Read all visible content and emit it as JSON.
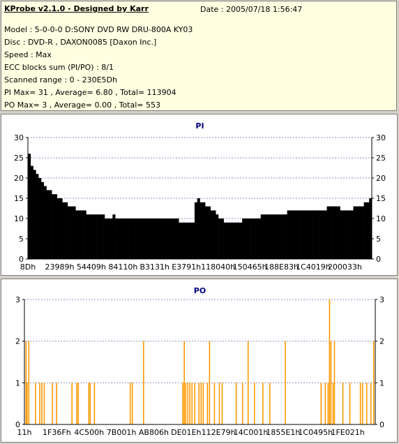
{
  "info": {
    "title": "KProbe v2.1.0 - Designed by Karr",
    "date": "Date : 2005/07/18 1:56:47",
    "lines": [
      "Model : 5-0-0-0 D:SONY    DVD RW DRU-800A  KY03",
      "Disc : DVD-R , DAXON0085 [Daxon Inc.]",
      "Speed : Max",
      "ECC blocks sum (PI/PO) : 8/1",
      "Scanned range : 0 - 230E5Dh",
      "PI Max= 31 , Average= 6.80 , Total= 113904",
      "PO Max= 3 , Average= 0.00 , Total= 553"
    ]
  },
  "chart_data": [
    {
      "type": "bar",
      "title": "PI",
      "color": "#000000",
      "ylim": [
        0,
        30
      ],
      "yticks": [
        0,
        5,
        10,
        15,
        20,
        25,
        30
      ],
      "xticks": [
        "8Dh",
        "23989h",
        "54409h",
        "84110h",
        "B3131h",
        "E3791h",
        "118040h",
        "150465h",
        "188E83h",
        "1C4019h",
        "200033h"
      ],
      "grid": true,
      "series": [
        {
          "values_sampled": [
            26,
            23,
            22,
            21,
            20,
            19,
            18,
            17,
            17,
            16,
            16,
            15,
            15,
            14,
            14,
            13,
            13,
            13,
            12,
            12,
            12,
            12,
            11,
            11,
            11,
            11,
            11,
            11,
            11,
            10,
            10,
            10,
            11,
            10,
            10,
            10,
            10,
            10,
            10,
            10,
            10,
            10,
            10,
            10,
            10,
            10,
            10,
            10,
            10,
            10,
            10,
            10,
            10,
            10,
            10,
            10,
            10,
            9,
            9,
            9,
            9,
            9,
            9,
            14,
            15,
            14,
            14,
            13,
            13,
            12,
            12,
            11,
            10,
            10,
            9,
            9,
            9,
            9,
            9,
            9,
            9,
            10,
            10,
            10,
            10,
            10,
            10,
            10,
            11,
            11,
            11,
            11,
            11,
            11,
            11,
            11,
            11,
            11,
            12,
            12,
            12,
            12,
            12,
            12,
            12,
            12,
            12,
            12,
            12,
            12,
            12,
            12,
            12,
            13,
            13,
            13,
            13,
            13,
            12,
            12,
            12,
            12,
            12,
            13,
            13,
            13,
            13,
            14,
            14,
            15
          ]
        }
      ]
    },
    {
      "type": "bar",
      "title": "PO",
      "color": "#ff9900",
      "ylim": [
        0,
        3
      ],
      "yticks": [
        0,
        1,
        2,
        3
      ],
      "xticks": [
        "11h",
        "1F36Fh",
        "4C500h",
        "7B001h",
        "AB806h",
        "DE01Eh",
        "112E79h",
        "14C001h",
        "1855E1h",
        "1C0495h",
        "1FE021h"
      ],
      "grid": true,
      "series": [
        {
          "spikes": [
            [
              0.3,
              2
            ],
            [
              0.6,
              1
            ],
            [
              1.1,
              2
            ],
            [
              3.0,
              1
            ],
            [
              4.2,
              1
            ],
            [
              4.8,
              1
            ],
            [
              5.5,
              1
            ],
            [
              7.8,
              1
            ],
            [
              9.0,
              1
            ],
            [
              13.4,
              1
            ],
            [
              14.8,
              1
            ],
            [
              15.2,
              1
            ],
            [
              18.2,
              1
            ],
            [
              18.6,
              1
            ],
            [
              19.8,
              1
            ],
            [
              30.0,
              1
            ],
            [
              30.6,
              1
            ],
            [
              33.8,
              2
            ],
            [
              45.0,
              1
            ],
            [
              45.4,
              2
            ],
            [
              45.8,
              1
            ],
            [
              46.4,
              1
            ],
            [
              47.0,
              1
            ],
            [
              47.6,
              1
            ],
            [
              48.4,
              1
            ],
            [
              49.6,
              1
            ],
            [
              50.2,
              1
            ],
            [
              50.8,
              1
            ],
            [
              52.0,
              1
            ],
            [
              52.6,
              2
            ],
            [
              54.0,
              1
            ],
            [
              55.4,
              1
            ],
            [
              56.2,
              1
            ],
            [
              60.2,
              1
            ],
            [
              62.0,
              1
            ],
            [
              63.6,
              2
            ],
            [
              65.4,
              1
            ],
            [
              67.8,
              1
            ],
            [
              69.8,
              1
            ],
            [
              74.2,
              2
            ],
            [
              84.4,
              1
            ],
            [
              85.6,
              1
            ],
            [
              86.4,
              1
            ],
            [
              86.8,
              3
            ],
            [
              87.2,
              2
            ],
            [
              87.8,
              1
            ],
            [
              88.2,
              2
            ],
            [
              90.6,
              1
            ],
            [
              92.6,
              1
            ],
            [
              95.6,
              1
            ],
            [
              96.2,
              1
            ],
            [
              97.4,
              1
            ],
            [
              98.6,
              1
            ],
            [
              99.4,
              2
            ]
          ]
        }
      ]
    }
  ]
}
